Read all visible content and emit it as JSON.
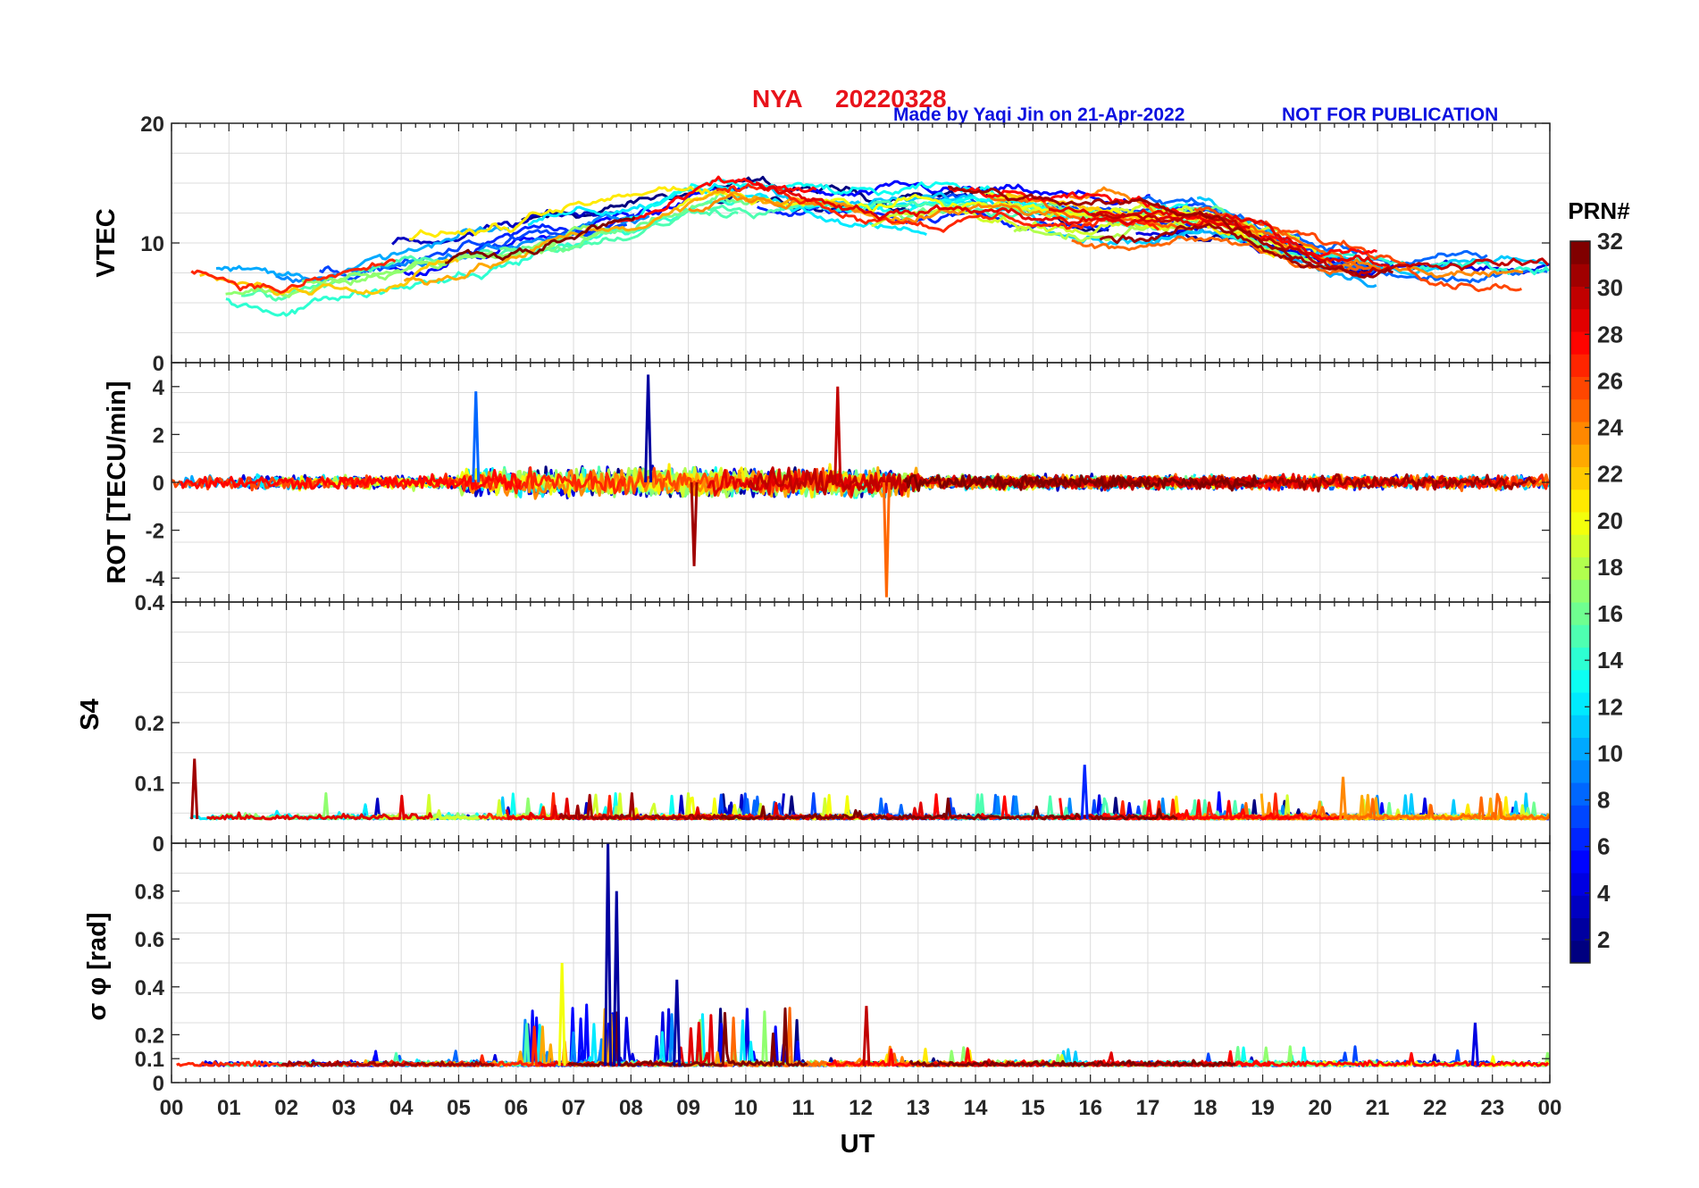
{
  "title": {
    "station": "NYA",
    "date": "20220328",
    "credit": "Made by Yaqi Jin on 21-Apr-2022",
    "notice": "NOT FOR PUBLICATION"
  },
  "xaxis": {
    "label": "UT",
    "ticks": [
      "00",
      "01",
      "02",
      "03",
      "04",
      "05",
      "06",
      "07",
      "08",
      "09",
      "10",
      "11",
      "12",
      "13",
      "14",
      "15",
      "16",
      "17",
      "18",
      "19",
      "20",
      "21",
      "22",
      "23",
      "00"
    ],
    "range_hours": [
      0,
      24
    ]
  },
  "colorbar": {
    "label": "PRN#",
    "ticks": [
      "2",
      "4",
      "6",
      "8",
      "10",
      "12",
      "14",
      "16",
      "18",
      "20",
      "22",
      "24",
      "26",
      "28",
      "30",
      "32"
    ],
    "range": [
      1,
      32
    ],
    "colormap": "jet"
  },
  "chart_data": [
    {
      "type": "line",
      "panel": "vtec",
      "ylabel": "VTEC",
      "ylim": [
        0,
        20
      ],
      "yticks": [
        "0",
        "10",
        "20"
      ],
      "grid": true,
      "description_series": [
        {
          "name": "PRN 1-32 envelope",
          "x_hours": [
            0,
            2,
            4,
            6,
            8,
            9.5,
            10,
            12,
            14,
            16,
            18,
            20,
            22,
            24
          ],
          "values": [
            7,
            6,
            8,
            10,
            12,
            14,
            14,
            13,
            13,
            12,
            12,
            9,
            8,
            8
          ]
        }
      ]
    },
    {
      "type": "line",
      "panel": "rot",
      "ylabel": "ROT [TECU/min]",
      "ylim": [
        -5,
        5
      ],
      "yticks": [
        "-4",
        "-2",
        "0",
        "2",
        "4"
      ],
      "grid": true,
      "peaks": [
        {
          "x_hours": 5.3,
          "value": 3.8,
          "prn": 8
        },
        {
          "x_hours": 8.3,
          "value": 4.5,
          "prn": 2
        },
        {
          "x_hours": 11.6,
          "value": 4.0,
          "prn": 30
        },
        {
          "x_hours": 12.45,
          "value": -4.8,
          "prn": 25
        },
        {
          "x_hours": 9.1,
          "value": -3.5,
          "prn": 31
        }
      ]
    },
    {
      "type": "line",
      "panel": "s4",
      "ylabel": "S4",
      "ylim": [
        0,
        0.4
      ],
      "yticks": [
        "0",
        "0.1",
        "0.2",
        "0.4"
      ],
      "grid": true,
      "peaks": [
        {
          "x_hours": 0.4,
          "value": 0.14,
          "prn": 31
        },
        {
          "x_hours": 15.9,
          "value": 0.13,
          "prn": 6
        },
        {
          "x_hours": 20.4,
          "value": 0.11,
          "prn": 24
        }
      ]
    },
    {
      "type": "line",
      "panel": "sigma_phi",
      "ylabel": "σ φ [rad]",
      "ylim": [
        0,
        1
      ],
      "yticks": [
        "0",
        "0.1",
        "0.2",
        "0.4",
        "0.6",
        "0.8"
      ],
      "grid": true,
      "peaks": [
        {
          "x_hours": 7.6,
          "value": 1.0,
          "prn": 2
        },
        {
          "x_hours": 7.75,
          "value": 0.8,
          "prn": 2
        },
        {
          "x_hours": 6.8,
          "value": 0.5,
          "prn": 20
        },
        {
          "x_hours": 8.8,
          "value": 0.43,
          "prn": 2
        },
        {
          "x_hours": 12.1,
          "value": 0.32,
          "prn": 30
        },
        {
          "x_hours": 22.7,
          "value": 0.25,
          "prn": 4
        }
      ]
    }
  ]
}
